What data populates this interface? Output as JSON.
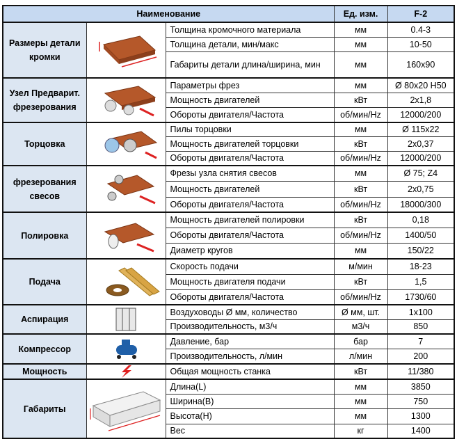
{
  "header": {
    "name": "Наименование",
    "unit": "Ед. изм.",
    "model": "F-2"
  },
  "groups": [
    {
      "name": "Размеры детали кромки",
      "rows": [
        [
          "Толщина кромочного материала",
          "мм",
          "0.4-3"
        ],
        [
          "Толщина детали, мин/макс",
          "мм",
          "10-50"
        ],
        [
          "Габариты детали длина/ширина, мин",
          "мм",
          "160x90"
        ]
      ]
    },
    {
      "name": "Узел Предварит. фрезерования",
      "rows": [
        [
          "Параметры фрез",
          "мм",
          "Ø 80x20 H50"
        ],
        [
          "Мощность двигателей",
          "кВт",
          "2x1,8"
        ],
        [
          "Обороты двигателя/Частота",
          "об/мин/Hz",
          "12000/200"
        ]
      ]
    },
    {
      "name": "Торцовка",
      "rows": [
        [
          "Пилы торцовки",
          "мм",
          "Ø 115x22"
        ],
        [
          "Мощность двигателей торцовки",
          "кВт",
          "2x0,37"
        ],
        [
          "Обороты двигателя/Частота",
          "об/мин/Hz",
          "12000/200"
        ]
      ]
    },
    {
      "name": "фрезерования свесов",
      "rows": [
        [
          "Фрезы узла снятия свесов",
          "мм",
          "Ø 75; Z4"
        ],
        [
          "Мощность двигателей",
          "кВт",
          "2x0,75"
        ],
        [
          "Обороты двигателя/Частота",
          "об/мин/Hz",
          "18000/300"
        ]
      ]
    },
    {
      "name": "Полировка",
      "rows": [
        [
          "Мощность двигателей полировки",
          "кВт",
          "0,18"
        ],
        [
          "Обороты двигателя/Частота",
          "об/мин/Hz",
          "1400/50"
        ],
        [
          "Диаметр кругов",
          "мм",
          "150/22"
        ]
      ]
    },
    {
      "name": "Подача",
      "rows": [
        [
          "Скорость подачи",
          "м/мин",
          "18-23"
        ],
        [
          "Мощность двигателя подачи",
          "кВт",
          "1,5"
        ],
        [
          "Обороты двигателя/Частота",
          "об/мин/Hz",
          "1730/60"
        ]
      ]
    },
    {
      "name": "Аспирация",
      "rows": [
        [
          "Воздуховоды Ø мм, количество",
          "Ø мм, шт.",
          "1x100"
        ],
        [
          "Производительность, м3/ч",
          "м3/ч",
          "850"
        ]
      ]
    },
    {
      "name": "Компрессор",
      "rows": [
        [
          "Давление, бар",
          "бар",
          "7"
        ],
        [
          "Производительность, л/мин",
          "л/мин",
          "200"
        ]
      ]
    },
    {
      "name": "Мощность",
      "rows": [
        [
          "Общая мощность станка",
          "кВт",
          "11/380"
        ]
      ]
    },
    {
      "name": "Габариты",
      "rows": [
        [
          "Длина(L)",
          "мм",
          "3850"
        ],
        [
          "Ширина(B)",
          "мм",
          "750"
        ],
        [
          "Высота(H)",
          "мм",
          "1300"
        ],
        [
          "Вес",
          "кг",
          "1400"
        ]
      ]
    }
  ]
}
